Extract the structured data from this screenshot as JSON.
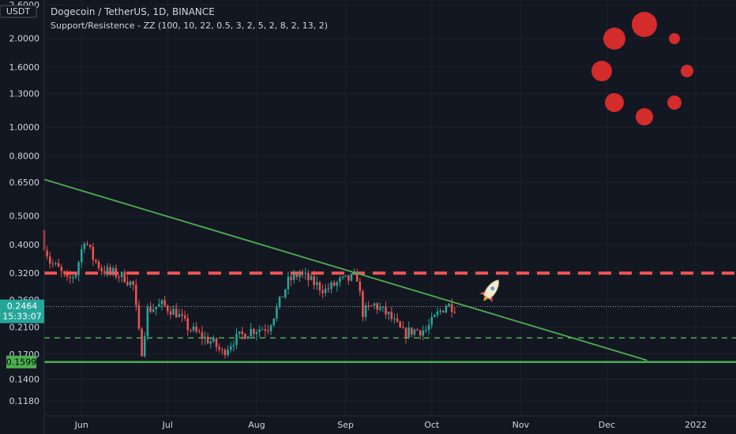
{
  "header": {
    "title": "Dogecoin / TetherUS, 1D, BINANCE",
    "indicator": "Support/Resistence - ZZ (100, 10, 22, 0.5, 3, 2, 5, 2, 8, 2, 13, 2)",
    "currency": "USDT"
  },
  "badges": {
    "price": "0.2464",
    "countdown": "15:33:07",
    "support": "0.1599"
  },
  "colors": {
    "background": "#131722",
    "up": "#26a69a",
    "down": "#ef5350",
    "resistance": "#f05454",
    "support": "#4caf50",
    "trendline": "#4caf50",
    "spinner": "#d42b2b",
    "text": "#d1d4dc",
    "grid": "#1e222d"
  },
  "chart_data": {
    "type": "candlestick",
    "y_scale": "log",
    "ylim": [
      0.105,
      2.7
    ],
    "y_ticks": [
      "2.6000",
      "2.0000",
      "1.6000",
      "1.3000",
      "1.0000",
      "0.8000",
      "0.6500",
      "0.5000",
      "0.4000",
      "0.3200",
      "0.2600",
      "0.2100",
      "0.1700",
      "0.1400",
      "0.1180"
    ],
    "x_ticks": [
      "Jun",
      "Jul",
      "Aug",
      "Sep",
      "Oct",
      "Nov",
      "Dec",
      "2022"
    ],
    "x_range": [
      "2021-05-19",
      "2022-01-15"
    ],
    "resistance_level": 0.32,
    "support_level": 0.1599,
    "mid_support_level": 0.193,
    "current_price": 0.2464,
    "trendline": [
      {
        "date": "2021-05-19",
        "price": 0.665
      },
      {
        "date": "2021-12-15",
        "price": 0.162
      }
    ],
    "close_series": [
      {
        "date": "2021-05-19",
        "close": 0.4
      },
      {
        "date": "2021-05-21",
        "close": 0.35
      },
      {
        "date": "2021-05-24",
        "close": 0.33
      },
      {
        "date": "2021-05-27",
        "close": 0.3
      },
      {
        "date": "2021-05-30",
        "close": 0.32
      },
      {
        "date": "2021-06-02",
        "close": 0.42
      },
      {
        "date": "2021-06-05",
        "close": 0.36
      },
      {
        "date": "2021-06-08",
        "close": 0.33
      },
      {
        "date": "2021-06-12",
        "close": 0.32
      },
      {
        "date": "2021-06-16",
        "close": 0.31
      },
      {
        "date": "2021-06-19",
        "close": 0.29
      },
      {
        "date": "2021-06-21",
        "close": 0.2
      },
      {
        "date": "2021-06-22",
        "close": 0.175
      },
      {
        "date": "2021-06-24",
        "close": 0.24
      },
      {
        "date": "2021-06-29",
        "close": 0.25
      },
      {
        "date": "2021-07-04",
        "close": 0.235
      },
      {
        "date": "2021-07-08",
        "close": 0.21
      },
      {
        "date": "2021-07-13",
        "close": 0.195
      },
      {
        "date": "2021-07-17",
        "close": 0.185
      },
      {
        "date": "2021-07-20",
        "close": 0.172
      },
      {
        "date": "2021-07-24",
        "close": 0.19
      },
      {
        "date": "2021-07-30",
        "close": 0.205
      },
      {
        "date": "2021-08-05",
        "close": 0.21
      },
      {
        "date": "2021-08-09",
        "close": 0.255
      },
      {
        "date": "2021-08-12",
        "close": 0.3
      },
      {
        "date": "2021-08-16",
        "close": 0.32
      },
      {
        "date": "2021-08-20",
        "close": 0.3
      },
      {
        "date": "2021-08-25",
        "close": 0.28
      },
      {
        "date": "2021-08-30",
        "close": 0.3
      },
      {
        "date": "2021-09-05",
        "close": 0.31
      },
      {
        "date": "2021-09-07",
        "close": 0.235
      },
      {
        "date": "2021-09-11",
        "close": 0.25
      },
      {
        "date": "2021-09-16",
        "close": 0.23
      },
      {
        "date": "2021-09-21",
        "close": 0.2
      },
      {
        "date": "2021-09-25",
        "close": 0.205
      },
      {
        "date": "2021-09-29",
        "close": 0.205
      },
      {
        "date": "2021-10-03",
        "close": 0.232
      },
      {
        "date": "2021-10-06",
        "close": 0.25
      },
      {
        "date": "2021-10-09",
        "close": 0.2464
      }
    ]
  }
}
